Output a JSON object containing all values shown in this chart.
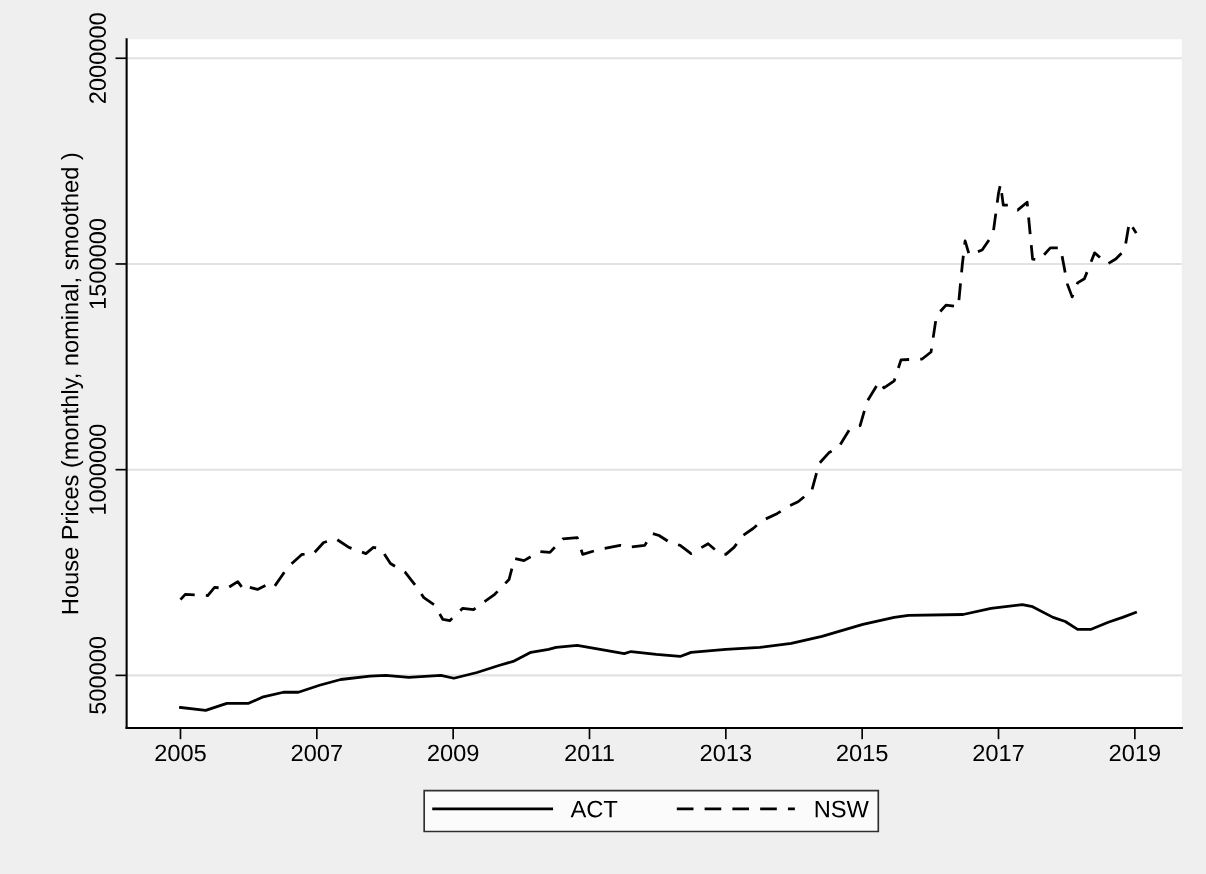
{
  "chart_data": {
    "type": "line",
    "ylabel": "House Prices (monthly, nominal, smoothed )",
    "xlim": [
      2004.21,
      2019.69
    ],
    "xticks": [
      2005,
      2007,
      2009,
      2011,
      2013,
      2015,
      2017,
      2019
    ],
    "ylim": [
      372000,
      2046000
    ],
    "yticks": [
      500000,
      1000000,
      1500000,
      2000000
    ],
    "grid": "y",
    "legend": "bottom",
    "marker": "none",
    "series": [
      {
        "name": "ACT",
        "color": "#000000",
        "line_style": "solid",
        "x": [
          2005.0,
          2005.37,
          2005.68,
          2006.0,
          2006.2,
          2006.51,
          2006.73,
          2007.04,
          2007.35,
          2007.78,
          2008.01,
          2008.35,
          2008.82,
          2009.01,
          2009.35,
          2009.67,
          2009.88,
          2010.14,
          2010.4,
          2010.51,
          2010.82,
          2011.24,
          2011.51,
          2011.61,
          2011.98,
          2012.33,
          2012.49,
          2013.0,
          2013.5,
          2013.96,
          2014.41,
          2015.01,
          2015.47,
          2015.68,
          2016.48,
          2016.89,
          2017.35,
          2017.5,
          2017.8,
          2017.98,
          2018.16,
          2018.36,
          2018.61,
          2018.82,
          2019.01
        ],
        "values": [
          422000,
          415000,
          432000,
          432000,
          447000,
          459000,
          459000,
          476000,
          490000,
          498000,
          500000,
          495000,
          500000,
          493000,
          507000,
          524000,
          534000,
          556000,
          563000,
          568000,
          573000,
          561000,
          553000,
          558000,
          551000,
          546000,
          556000,
          563000,
          568000,
          578000,
          595000,
          624000,
          641000,
          646000,
          648000,
          663000,
          672000,
          667000,
          641000,
          631000,
          612000,
          612000,
          629000,
          641000,
          653000
        ]
      },
      {
        "name": "NSW",
        "color": "#000000",
        "line_style": "dashed",
        "x": [
          2005.0,
          2005.07,
          2005.4,
          2005.5,
          2005.68,
          2005.84,
          2005.94,
          2006.01,
          2006.13,
          2006.28,
          2006.37,
          2006.57,
          2006.78,
          2006.94,
          2007.1,
          2007.28,
          2007.47,
          2007.72,
          2007.83,
          2007.94,
          2008.08,
          2008.3,
          2008.45,
          2008.57,
          2008.72,
          2008.85,
          2008.95,
          2009.14,
          2009.3,
          2009.61,
          2009.82,
          2009.9,
          2010.04,
          2010.27,
          2010.42,
          2010.61,
          2010.82,
          2010.9,
          2011.14,
          2011.45,
          2011.55,
          2011.81,
          2011.92,
          2012.02,
          2012.18,
          2012.33,
          2012.49,
          2012.74,
          2012.91,
          2013.0,
          2013.12,
          2013.25,
          2013.4,
          2013.53,
          2013.75,
          2013.91,
          2014.06,
          2014.26,
          2014.37,
          2014.51,
          2014.66,
          2014.82,
          2014.97,
          2015.07,
          2015.25,
          2015.32,
          2015.47,
          2015.57,
          2015.88,
          2016.01,
          2016.09,
          2016.23,
          2016.41,
          2016.47,
          2016.51,
          2016.57,
          2016.76,
          2016.92,
          2017.0,
          2017.03,
          2017.07,
          2017.17,
          2017.28,
          2017.42,
          2017.5,
          2017.6,
          2017.76,
          2017.91,
          2018.01,
          2018.08,
          2018.16,
          2018.26,
          2018.41,
          2018.6,
          2018.72,
          2018.85,
          2018.92,
          2019.02
        ],
        "values": [
          684000,
          697000,
          694000,
          714000,
          711000,
          728000,
          706000,
          714000,
          709000,
          721000,
          714000,
          762000,
          794000,
          794000,
          823000,
          832000,
          811000,
          796000,
          811000,
          808000,
          772000,
          750000,
          718000,
          689000,
          672000,
          636000,
          633000,
          663000,
          660000,
          697000,
          733000,
          784000,
          779000,
          801000,
          799000,
          832000,
          835000,
          794000,
          806000,
          816000,
          811000,
          816000,
          845000,
          840000,
          823000,
          816000,
          796000,
          820000,
          796000,
          794000,
          811000,
          840000,
          857000,
          876000,
          893000,
          910000,
          922000,
          949000,
          1015000,
          1041000,
          1056000,
          1099000,
          1107000,
          1165000,
          1214000,
          1199000,
          1216000,
          1267000,
          1269000,
          1286000,
          1374000,
          1400000,
          1396000,
          1500000,
          1556000,
          1522000,
          1534000,
          1573000,
          1672000,
          1694000,
          1643000,
          1643000,
          1631000,
          1650000,
          1512000,
          1510000,
          1539000,
          1539000,
          1451000,
          1420000,
          1454000,
          1464000,
          1527000,
          1500000,
          1512000,
          1534000,
          1602000,
          1575000
        ]
      }
    ]
  }
}
